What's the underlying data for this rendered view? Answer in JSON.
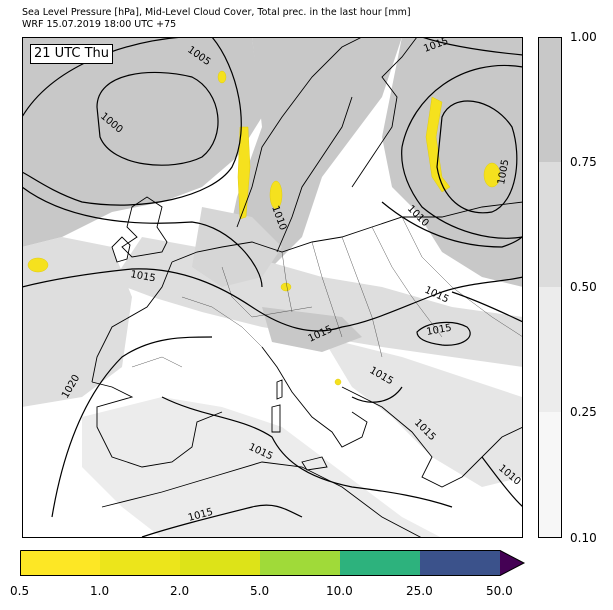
{
  "header": {
    "title_line1": "Sea Level Pressure [hPa], Mid-Level Cloud Cover, Total prec. in the last hour [mm]",
    "title_line2": "WRF 15.07.2019 18:00 UTC +75"
  },
  "map": {
    "time_label": "21 UTC Thu",
    "isobar_labels": [
      "1005",
      "1000",
      "1015",
      "1005",
      "1010",
      "1010",
      "1015",
      "1015",
      "1015",
      "1015",
      "1015",
      "1020",
      "1015",
      "1015",
      "1015",
      "1010"
    ],
    "colors": {
      "cloud_high": "#c8c8c8",
      "cloud_mid": "#dedede",
      "precip": "#f5e11e",
      "land": "#ffffff",
      "isobar": "#000000"
    }
  },
  "cloud_colorbar": {
    "ticks": [
      "1.00",
      "0.75",
      "0.50",
      "0.25",
      "0.10"
    ],
    "colors": [
      "#c8c8c8",
      "#dcdcdc",
      "#ececec",
      "#f7f7f7"
    ]
  },
  "precip_colorbar": {
    "ticks": [
      "0.5",
      "1.0",
      "2.0",
      "5.0",
      "10.0",
      "25.0",
      "50.0"
    ],
    "colors": [
      "#fde725",
      "#ece51b",
      "#dde318",
      "#a0da39",
      "#2db27d",
      "#3b528b",
      "#440154"
    ]
  }
}
